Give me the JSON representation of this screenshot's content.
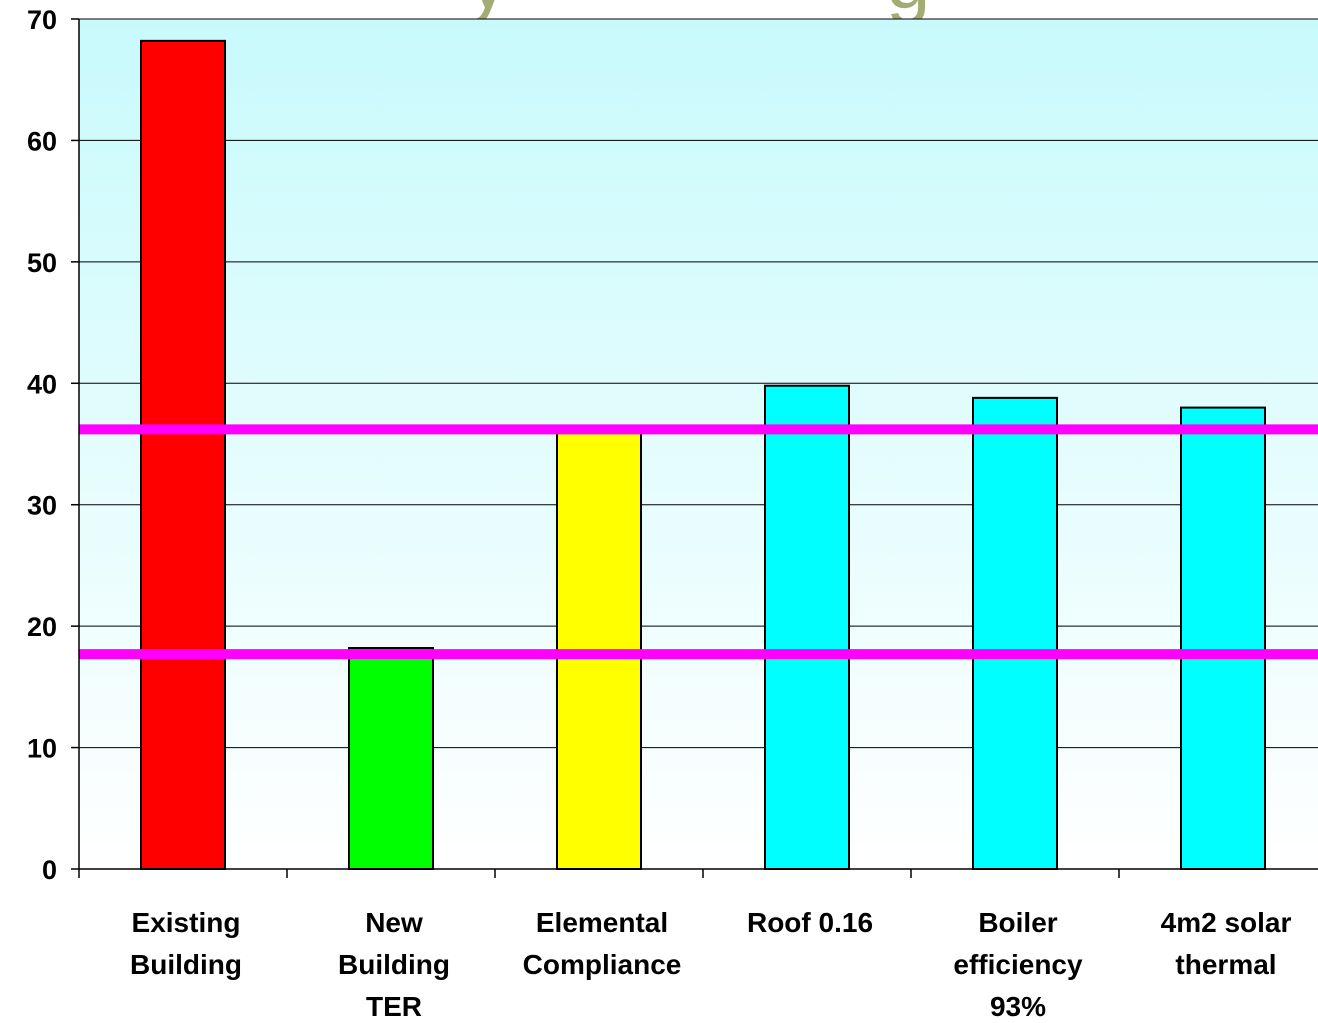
{
  "colors": {
    "plot_top": "#c8fafc",
    "plot_bottom": "#ffffff",
    "reference_line": "#ff00ff",
    "bar_outline": "#000000",
    "background_title": "#a3ad73"
  },
  "chart_data": {
    "type": "bar",
    "title": "",
    "xlabel": "",
    "ylabel": "",
    "ylim": [
      0,
      70
    ],
    "yticks": [
      "0",
      "10",
      "20",
      "30",
      "40",
      "50",
      "60",
      "70"
    ],
    "grid": true,
    "categories": [
      [
        "Existing",
        "Building"
      ],
      [
        "New",
        "Building",
        "TER"
      ],
      [
        "Elemental",
        "Compliance"
      ],
      [
        "Roof 0.16"
      ],
      [
        "Boiler",
        "efficiency",
        "93%"
      ],
      [
        "4m2 solar",
        "thermal"
      ]
    ],
    "values": [
      68.2,
      18.2,
      36.1,
      39.8,
      38.8,
      38.0
    ],
    "bar_colors": [
      "#ff0000",
      "#00ff00",
      "#ffff00",
      "#00ffff",
      "#00ffff",
      "#00ffff"
    ],
    "reference_lines": [
      36.2,
      17.7
    ]
  }
}
